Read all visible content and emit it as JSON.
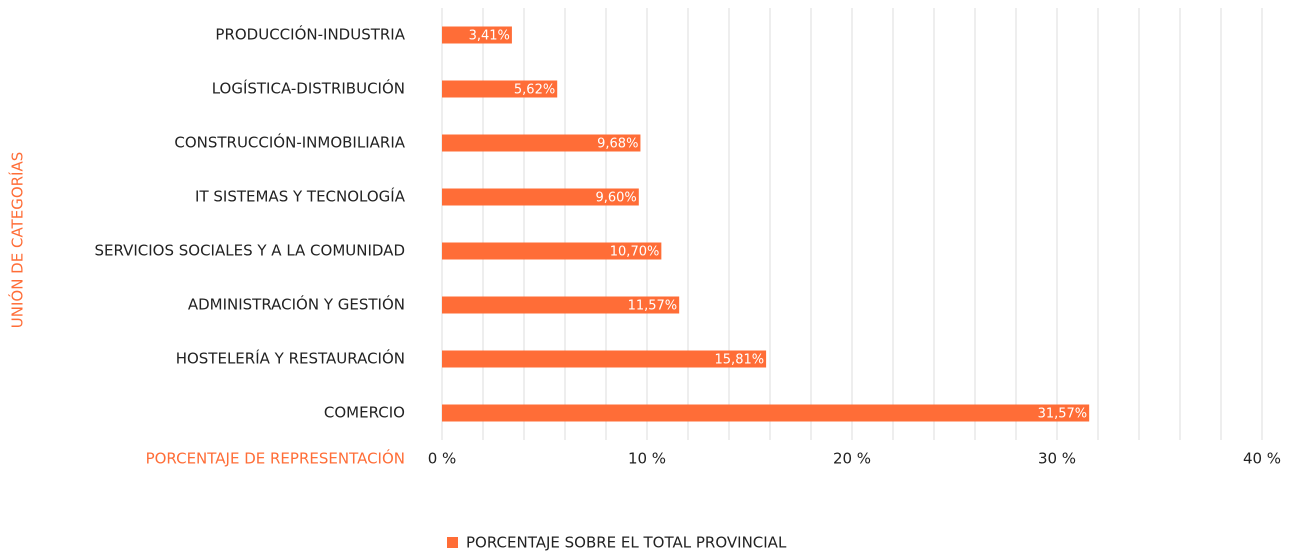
{
  "chart_data": {
    "type": "bar",
    "orientation": "horizontal",
    "y_label": "UNIÓN DE CATEGORÍAS",
    "x_label": "PORCENTAJE DE REPRESENTACIÓN",
    "categories": [
      "PRODUCCIÓN-INDUSTRIA",
      "LOGÍSTICA-DISTRIBUCIÓN",
      "CONSTRUCCIÓN-INMOBILIARIA",
      "IT SISTEMAS Y TECNOLOGÍA",
      "SERVICIOS SOCIALES Y A LA COMUNIDAD",
      "ADMINISTRACIÓN Y GESTIÓN",
      "HOSTELERÍA Y RESTAURACIÓN",
      "COMERCIO"
    ],
    "series": [
      {
        "name": "PORCENTAJE SOBRE EL TOTAL PROVINCIAL",
        "color": "#ff6d37",
        "values": [
          3.41,
          5.62,
          9.68,
          9.6,
          10.7,
          11.57,
          15.81,
          31.57
        ],
        "value_labels": [
          "3,41%",
          "5,62%",
          "9,68%",
          "9,60%",
          "10,70%",
          "11,57%",
          "15,81%",
          "31,57%"
        ]
      }
    ],
    "xlim": [
      0,
      40
    ],
    "xticks": [
      {
        "value": 0,
        "label": "0 %"
      },
      {
        "value": 10,
        "label": "10 %"
      },
      {
        "value": 20,
        "label": "20 %"
      },
      {
        "value": 30,
        "label": "30 %"
      },
      {
        "value": 40,
        "label": "40 %"
      }
    ],
    "xminorticks": [
      2,
      4,
      6,
      8,
      12,
      14,
      16,
      18,
      22,
      24,
      26,
      28,
      32,
      34,
      36,
      38
    ],
    "grid": true,
    "legend": "bottom"
  }
}
